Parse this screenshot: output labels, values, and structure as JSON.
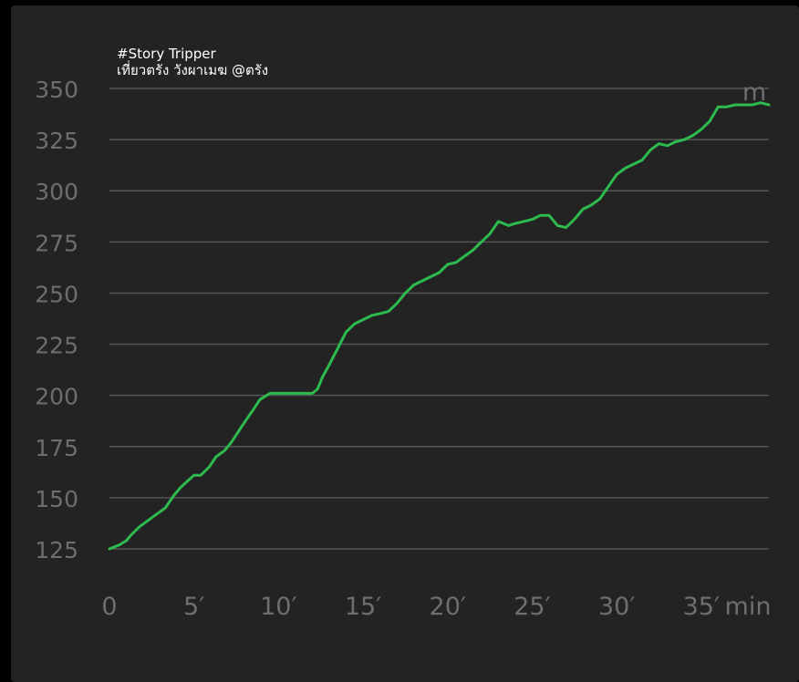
{
  "chart_data": {
    "type": "line",
    "title": "#Story Tripper",
    "subtitle": "เที่ยวตรัง วังผาเมฆ @ตรัง",
    "xlabel": "min",
    "ylabel": "m",
    "xlim": [
      0,
      39
    ],
    "ylim": [
      125,
      350
    ],
    "yticks": [
      125,
      150,
      175,
      200,
      225,
      250,
      275,
      300,
      325,
      350
    ],
    "xticks": [
      0,
      5,
      10,
      15,
      20,
      25,
      30,
      35
    ],
    "xtick_labels": [
      "0",
      "5′",
      "10′",
      "15′",
      "20′",
      "25′",
      "30′",
      "35′"
    ],
    "grid": true,
    "line_color": "#2dbb4e",
    "series": [
      {
        "x": [
          0,
          0.3,
          0.6,
          1.0,
          1.3,
          1.8,
          2.3,
          2.8,
          3.3,
          3.8,
          4.2,
          4.6,
          5.0,
          5.4,
          5.9,
          6.3,
          6.8,
          7.2,
          7.6,
          8.0,
          8.5,
          8.9,
          9.3,
          9.5,
          10,
          11,
          12,
          12.3,
          12.6,
          13,
          13.5,
          14,
          14.5,
          15,
          15.5,
          16,
          16.5,
          17,
          17.5,
          18,
          18.5,
          19,
          19.5,
          20,
          20.5,
          21,
          21.5,
          22,
          22.5,
          23,
          23.3,
          23.6,
          24,
          24.5,
          25,
          25.5,
          26,
          26.5,
          27,
          27.5,
          28,
          28.5,
          29,
          29.5,
          30,
          30.5,
          31,
          31.5,
          32,
          32.5,
          33,
          33.5,
          34,
          34.5,
          35,
          35.5,
          36,
          36.5,
          37,
          37.5,
          38,
          38.5,
          39
        ],
        "values": [
          125,
          126,
          127,
          129,
          132,
          136,
          139,
          142,
          145,
          151,
          155,
          158,
          161,
          161,
          165,
          170,
          173,
          177,
          182,
          187,
          193,
          198,
          200,
          201,
          201,
          201,
          201,
          203,
          209,
          215,
          223,
          231,
          235,
          237,
          239,
          240,
          241,
          245,
          250,
          254,
          256,
          258,
          260,
          264,
          265,
          268,
          271,
          275,
          279,
          285,
          284,
          283,
          284,
          285,
          286,
          288,
          288,
          283,
          282,
          286,
          291,
          293,
          296,
          302,
          308,
          311,
          313,
          315,
          320,
          323,
          322,
          324,
          325,
          327,
          330,
          334,
          341,
          341,
          342,
          342,
          342,
          343,
          342
        ]
      }
    ]
  }
}
